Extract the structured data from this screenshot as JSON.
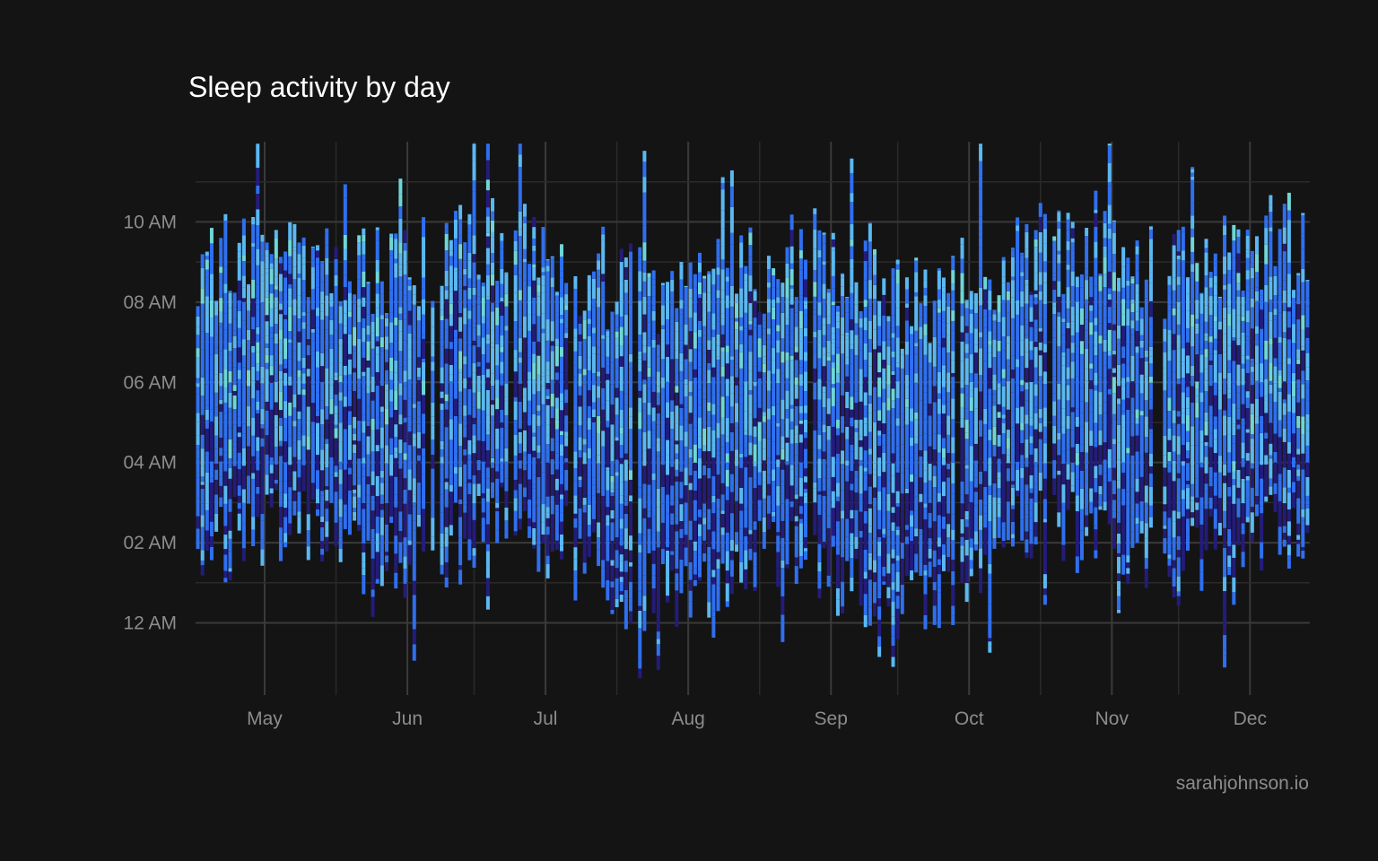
{
  "chart_data": {
    "type": "heatmap",
    "title": "Sleep activity by day",
    "caption": "sarahjohnson.io",
    "xlabel": "",
    "ylabel": "",
    "x_range": [
      "2023-04-16",
      "2023-12-14"
    ],
    "y_range_hours": [
      -1.8,
      12.0
    ],
    "x_ticks": [
      {
        "date": "2023-05-01",
        "label": "May"
      },
      {
        "date": "2023-06-01",
        "label": "Jun"
      },
      {
        "date": "2023-07-01",
        "label": "Jul"
      },
      {
        "date": "2023-08-01",
        "label": "Aug"
      },
      {
        "date": "2023-09-01",
        "label": "Sep"
      },
      {
        "date": "2023-10-01",
        "label": "Oct"
      },
      {
        "date": "2023-11-01",
        "label": "Nov"
      },
      {
        "date": "2023-12-01",
        "label": "Dec"
      }
    ],
    "y_ticks": [
      {
        "hour": 0,
        "label": "12 AM"
      },
      {
        "hour": 2,
        "label": "02 AM"
      },
      {
        "hour": 4,
        "label": "04 AM"
      },
      {
        "hour": 6,
        "label": "06 AM"
      },
      {
        "hour": 8,
        "label": "08 AM"
      },
      {
        "hour": 10,
        "label": "10 AM"
      }
    ],
    "grid": true,
    "legend": "none",
    "stage_colors": {
      "deep": "#241c7a",
      "core": "#2f6ff0",
      "rem": "#5ab8f2",
      "awake": "#6fd6d6"
    },
    "series": [
      {
        "start_date": "2023-04-16",
        "end_date": "2023-12-13",
        "typical_bedtime_hour": 1.5,
        "typical_wake_hour": 8.3
      }
    ]
  }
}
